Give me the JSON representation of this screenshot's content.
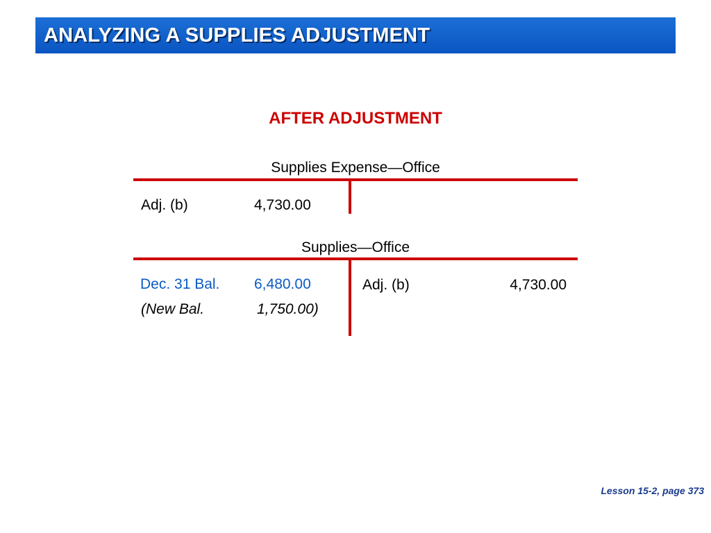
{
  "slide": {
    "title": "ANALYZING A SUPPLIES ADJUSTMENT",
    "subtitle": "AFTER ADJUSTMENT",
    "footer": "Lesson 15-2, page 373"
  },
  "accounts": [
    {
      "name": "Supplies Expense—Office",
      "debit": [
        {
          "label": "Adj. (b)",
          "amount": "4,730.00"
        }
      ],
      "credit": []
    },
    {
      "name": "Supplies—Office",
      "debit": [
        {
          "label": "Dec. 31 Bal.",
          "amount": "6,480.00"
        },
        {
          "label": "(New Bal.",
          "amount": "1,750.00)"
        }
      ],
      "credit": [
        {
          "label": "Adj. (b)",
          "amount": "4,730.00"
        }
      ]
    }
  ],
  "colors": {
    "title_bar": "#0a55c2",
    "accent_red": "#cc0000",
    "highlight_blue": "#0a5bc4",
    "footer_text": "#1a3a8c"
  }
}
